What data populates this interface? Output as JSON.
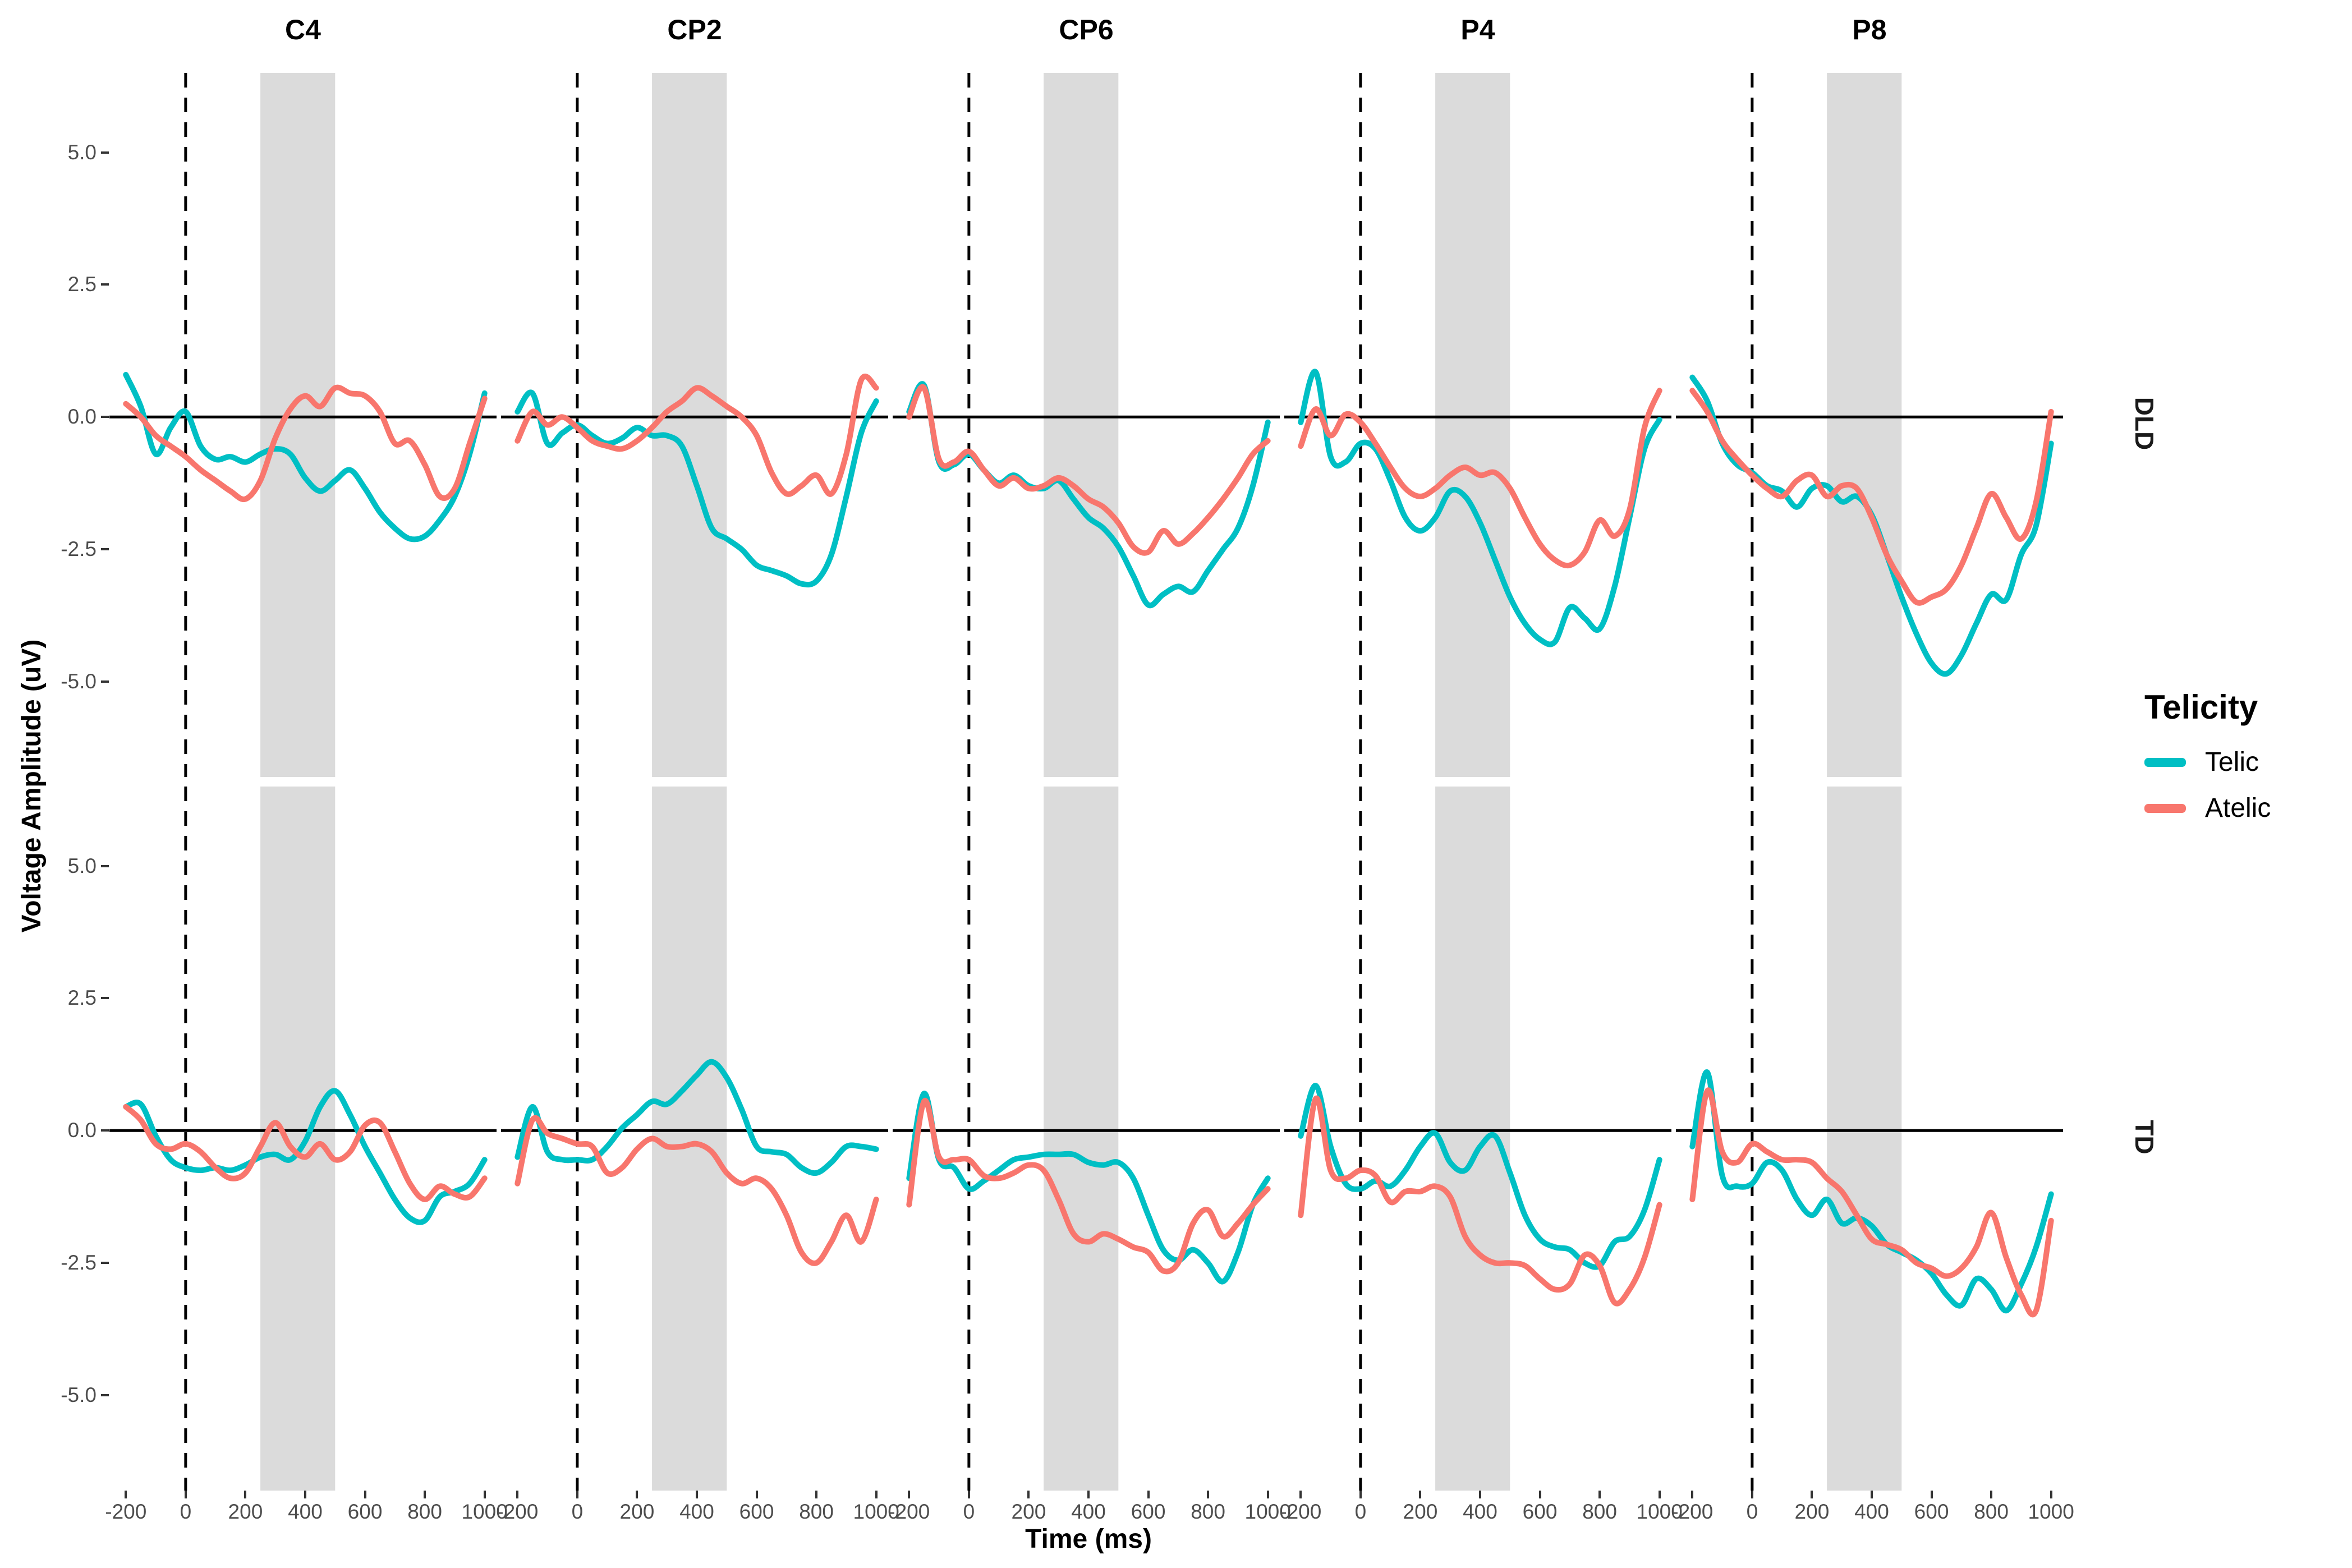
{
  "figure": {
    "y_axis_title": "Voltage Amplitude (uV)",
    "x_axis_title": "Time (ms)",
    "legend": {
      "title": "Telicity",
      "entries": [
        {
          "label": "Telic",
          "color": "#00BFC4"
        },
        {
          "label": "Atelic",
          "color": "#F8766D"
        }
      ]
    },
    "colors": {
      "telic": "#00BFC4",
      "atelic": "#F8766D",
      "band": "#DBDBDB",
      "axis_line": "#000000",
      "tick_label": "#4d4d4d"
    }
  },
  "chart_data": {
    "type": "line",
    "title": "",
    "xlabel": "Time (ms)",
    "ylabel": "Voltage Amplitude (uV)",
    "facet_columns": [
      "C4",
      "CP2",
      "CP6",
      "P4",
      "P8"
    ],
    "facet_rows": [
      "DLD",
      "TD"
    ],
    "x_ticks": [
      -200,
      0,
      200,
      400,
      600,
      800,
      1000
    ],
    "y_ticks": [
      5.0,
      2.5,
      0.0,
      -2.5,
      -5.0
    ],
    "xlim": [
      -255,
      1040
    ],
    "ylim": [
      -6.8,
      6.5
    ],
    "grid": false,
    "legend_position": "right",
    "stimulus_onset_ms": 0,
    "highlight_window_ms": [
      250,
      500
    ],
    "x": [
      -200,
      -150,
      -100,
      -50,
      0,
      50,
      100,
      150,
      200,
      250,
      300,
      350,
      400,
      450,
      500,
      550,
      600,
      650,
      700,
      750,
      800,
      850,
      900,
      950,
      1000
    ],
    "panels": [
      {
        "row": "DLD",
        "col": "C4",
        "series": [
          {
            "name": "Telic",
            "values": [
              0.8,
              0.2,
              -0.7,
              -0.2,
              0.1,
              -0.55,
              -0.8,
              -0.75,
              -0.85,
              -0.7,
              -0.6,
              -0.7,
              -1.15,
              -1.4,
              -1.2,
              -1.0,
              -1.35,
              -1.8,
              -2.1,
              -2.3,
              -2.25,
              -1.95,
              -1.5,
              -0.7,
              0.45
            ]
          },
          {
            "name": "Atelic",
            "values": [
              0.25,
              0.0,
              -0.35,
              -0.55,
              -0.75,
              -1.0,
              -1.2,
              -1.4,
              -1.55,
              -1.2,
              -0.4,
              0.15,
              0.4,
              0.2,
              0.55,
              0.45,
              0.4,
              0.1,
              -0.5,
              -0.45,
              -0.9,
              -1.5,
              -1.35,
              -0.5,
              0.35
            ]
          }
        ]
      },
      {
        "row": "DLD",
        "col": "CP2",
        "series": [
          {
            "name": "Telic",
            "values": [
              0.1,
              0.45,
              -0.5,
              -0.3,
              -0.15,
              -0.35,
              -0.5,
              -0.4,
              -0.2,
              -0.35,
              -0.35,
              -0.55,
              -1.3,
              -2.1,
              -2.3,
              -2.5,
              -2.8,
              -2.9,
              -3.0,
              -3.15,
              -3.1,
              -2.6,
              -1.5,
              -0.3,
              0.3
            ]
          },
          {
            "name": "Atelic",
            "values": [
              -0.45,
              0.1,
              -0.15,
              0.0,
              -0.2,
              -0.45,
              -0.55,
              -0.6,
              -0.45,
              -0.2,
              0.1,
              0.3,
              0.55,
              0.4,
              0.2,
              0.0,
              -0.35,
              -1.05,
              -1.45,
              -1.3,
              -1.1,
              -1.45,
              -0.7,
              0.7,
              0.55
            ]
          }
        ]
      },
      {
        "row": "DLD",
        "col": "CP6",
        "series": [
          {
            "name": "Telic",
            "values": [
              0.1,
              0.6,
              -0.85,
              -0.9,
              -0.7,
              -1.0,
              -1.25,
              -1.1,
              -1.3,
              -1.35,
              -1.2,
              -1.55,
              -1.9,
              -2.1,
              -2.45,
              -3.0,
              -3.55,
              -3.35,
              -3.2,
              -3.3,
              -2.9,
              -2.5,
              -2.1,
              -1.3,
              -0.1
            ]
          },
          {
            "name": "Atelic",
            "values": [
              0.0,
              0.55,
              -0.8,
              -0.85,
              -0.65,
              -1.0,
              -1.3,
              -1.15,
              -1.35,
              -1.3,
              -1.15,
              -1.3,
              -1.55,
              -1.7,
              -2.0,
              -2.45,
              -2.55,
              -2.15,
              -2.4,
              -2.2,
              -1.9,
              -1.55,
              -1.15,
              -0.7,
              -0.45
            ]
          }
        ]
      },
      {
        "row": "DLD",
        "col": "P4",
        "series": [
          {
            "name": "Telic",
            "values": [
              -0.1,
              0.85,
              -0.75,
              -0.85,
              -0.5,
              -0.6,
              -1.2,
              -1.9,
              -2.15,
              -1.9,
              -1.4,
              -1.5,
              -2.0,
              -2.7,
              -3.4,
              -3.9,
              -4.2,
              -4.25,
              -3.6,
              -3.8,
              -4.0,
              -3.2,
              -1.9,
              -0.6,
              -0.05
            ]
          },
          {
            "name": "Atelic",
            "values": [
              -0.55,
              0.15,
              -0.35,
              0.05,
              -0.1,
              -0.5,
              -0.95,
              -1.35,
              -1.5,
              -1.35,
              -1.1,
              -0.95,
              -1.1,
              -1.05,
              -1.35,
              -1.9,
              -2.4,
              -2.7,
              -2.8,
              -2.55,
              -1.95,
              -2.25,
              -1.75,
              -0.2,
              0.5
            ]
          }
        ]
      },
      {
        "row": "DLD",
        "col": "P8",
        "series": [
          {
            "name": "Telic",
            "values": [
              0.75,
              0.3,
              -0.5,
              -0.9,
              -1.05,
              -1.3,
              -1.4,
              -1.7,
              -1.35,
              -1.3,
              -1.6,
              -1.5,
              -1.85,
              -2.6,
              -3.4,
              -4.1,
              -4.65,
              -4.85,
              -4.5,
              -3.9,
              -3.35,
              -3.45,
              -2.6,
              -2.05,
              -0.5
            ]
          },
          {
            "name": "Atelic",
            "values": [
              0.5,
              0.1,
              -0.45,
              -0.8,
              -1.1,
              -1.35,
              -1.5,
              -1.2,
              -1.1,
              -1.5,
              -1.3,
              -1.35,
              -1.9,
              -2.6,
              -3.1,
              -3.5,
              -3.4,
              -3.25,
              -2.8,
              -2.1,
              -1.45,
              -1.9,
              -2.3,
              -1.6,
              0.1
            ]
          }
        ]
      },
      {
        "row": "TD",
        "col": "C4",
        "series": [
          {
            "name": "Telic",
            "values": [
              0.45,
              0.5,
              -0.1,
              -0.55,
              -0.7,
              -0.75,
              -0.7,
              -0.75,
              -0.65,
              -0.5,
              -0.45,
              -0.55,
              -0.2,
              0.45,
              0.75,
              0.3,
              -0.3,
              -0.8,
              -1.3,
              -1.65,
              -1.7,
              -1.25,
              -1.15,
              -1.0,
              -0.55
            ]
          },
          {
            "name": "Atelic",
            "values": [
              0.45,
              0.2,
              -0.25,
              -0.35,
              -0.25,
              -0.4,
              -0.7,
              -0.9,
              -0.8,
              -0.3,
              0.15,
              -0.3,
              -0.5,
              -0.25,
              -0.55,
              -0.4,
              0.1,
              0.15,
              -0.4,
              -1.0,
              -1.3,
              -1.05,
              -1.2,
              -1.25,
              -0.9
            ]
          }
        ]
      },
      {
        "row": "TD",
        "col": "CP2",
        "series": [
          {
            "name": "Telic",
            "values": [
              -0.5,
              0.45,
              -0.4,
              -0.55,
              -0.55,
              -0.55,
              -0.3,
              0.05,
              0.3,
              0.55,
              0.5,
              0.75,
              1.05,
              1.3,
              1.0,
              0.4,
              -0.3,
              -0.4,
              -0.45,
              -0.7,
              -0.8,
              -0.6,
              -0.3,
              -0.3,
              -0.35
            ]
          },
          {
            "name": "Atelic",
            "values": [
              -1.0,
              0.2,
              -0.05,
              -0.15,
              -0.25,
              -0.3,
              -0.8,
              -0.7,
              -0.35,
              -0.15,
              -0.3,
              -0.3,
              -0.25,
              -0.4,
              -0.8,
              -1.0,
              -0.9,
              -1.1,
              -1.6,
              -2.3,
              -2.5,
              -2.1,
              -1.6,
              -2.1,
              -1.3
            ]
          }
        ]
      },
      {
        "row": "TD",
        "col": "CP6",
        "series": [
          {
            "name": "Telic",
            "values": [
              -0.9,
              0.7,
              -0.55,
              -0.7,
              -1.1,
              -0.95,
              -0.75,
              -0.55,
              -0.5,
              -0.45,
              -0.45,
              -0.45,
              -0.6,
              -0.65,
              -0.6,
              -0.9,
              -1.6,
              -2.25,
              -2.45,
              -2.25,
              -2.5,
              -2.85,
              -2.3,
              -1.4,
              -0.9
            ]
          },
          {
            "name": "Atelic",
            "values": [
              -1.4,
              0.55,
              -0.5,
              -0.55,
              -0.55,
              -0.85,
              -0.9,
              -0.8,
              -0.65,
              -0.75,
              -1.3,
              -1.95,
              -2.1,
              -1.95,
              -2.05,
              -2.2,
              -2.3,
              -2.65,
              -2.5,
              -1.75,
              -1.5,
              -2.0,
              -1.75,
              -1.4,
              -1.1
            ]
          }
        ]
      },
      {
        "row": "TD",
        "col": "P4",
        "series": [
          {
            "name": "Telic",
            "values": [
              -0.1,
              0.85,
              -0.3,
              -1.0,
              -1.1,
              -0.95,
              -1.05,
              -0.75,
              -0.3,
              -0.05,
              -0.6,
              -0.75,
              -0.3,
              -0.1,
              -0.8,
              -1.6,
              -2.05,
              -2.2,
              -2.25,
              -2.5,
              -2.55,
              -2.1,
              -2.0,
              -1.5,
              -0.55
            ]
          },
          {
            "name": "Atelic",
            "values": [
              -1.6,
              0.6,
              -0.75,
              -0.9,
              -0.75,
              -0.85,
              -1.35,
              -1.15,
              -1.15,
              -1.05,
              -1.25,
              -2.0,
              -2.35,
              -2.5,
              -2.5,
              -2.55,
              -2.8,
              -3.0,
              -2.9,
              -2.35,
              -2.55,
              -3.25,
              -3.0,
              -2.4,
              -1.4
            ]
          }
        ]
      },
      {
        "row": "TD",
        "col": "P8",
        "series": [
          {
            "name": "Telic",
            "values": [
              -0.3,
              1.1,
              -0.85,
              -1.05,
              -1.0,
              -0.6,
              -0.75,
              -1.3,
              -1.6,
              -1.3,
              -1.75,
              -1.65,
              -1.8,
              -2.15,
              -2.3,
              -2.45,
              -2.7,
              -3.1,
              -3.3,
              -2.8,
              -3.0,
              -3.4,
              -2.9,
              -2.2,
              -1.2
            ]
          },
          {
            "name": "Atelic",
            "values": [
              -1.3,
              0.75,
              -0.4,
              -0.6,
              -0.25,
              -0.4,
              -0.55,
              -0.55,
              -0.6,
              -0.9,
              -1.15,
              -1.6,
              -2.05,
              -2.15,
              -2.25,
              -2.5,
              -2.6,
              -2.75,
              -2.6,
              -2.2,
              -1.55,
              -2.4,
              -3.1,
              -3.4,
              -1.7
            ]
          }
        ]
      }
    ]
  }
}
